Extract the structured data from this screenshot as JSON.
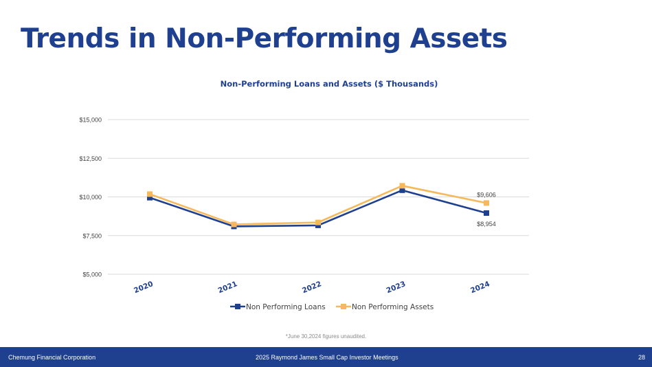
{
  "slide": {
    "title": "Trends in Non-Performing Assets",
    "footnote": "*June 30,2024 figures unaudited.",
    "footer": {
      "company": "Chemung Financial Corporation",
      "event": "2025 Raymond James Small Cap Investor Meetings",
      "page_number": "28"
    }
  },
  "chart_data": {
    "type": "line",
    "title": "Non-Performing Loans and Assets ($ Thousands)",
    "xlabel": "",
    "ylabel": "",
    "categories": [
      "2020",
      "2021",
      "2022",
      "2023",
      "2024"
    ],
    "ylim": [
      5000,
      15000
    ],
    "yticks": [
      5000,
      7500,
      10000,
      12500,
      15000
    ],
    "ytick_labels": [
      "$5,000",
      "$7,500",
      "$10,000",
      "$12,500",
      "$15,000"
    ],
    "grid": true,
    "legend_position": "bottom",
    "series": [
      {
        "name": "Non Performing Loans",
        "color": "#1f3f8f",
        "values": [
          9950,
          8090,
          8160,
          10430,
          8954
        ],
        "labels": [
          null,
          null,
          null,
          null,
          "$8,954"
        ]
      },
      {
        "name": "Non Performing Assets",
        "color": "#f5b85a",
        "values": [
          10180,
          8220,
          8350,
          10720,
          9606
        ],
        "labels": [
          null,
          null,
          null,
          null,
          "$9,606"
        ]
      }
    ]
  }
}
